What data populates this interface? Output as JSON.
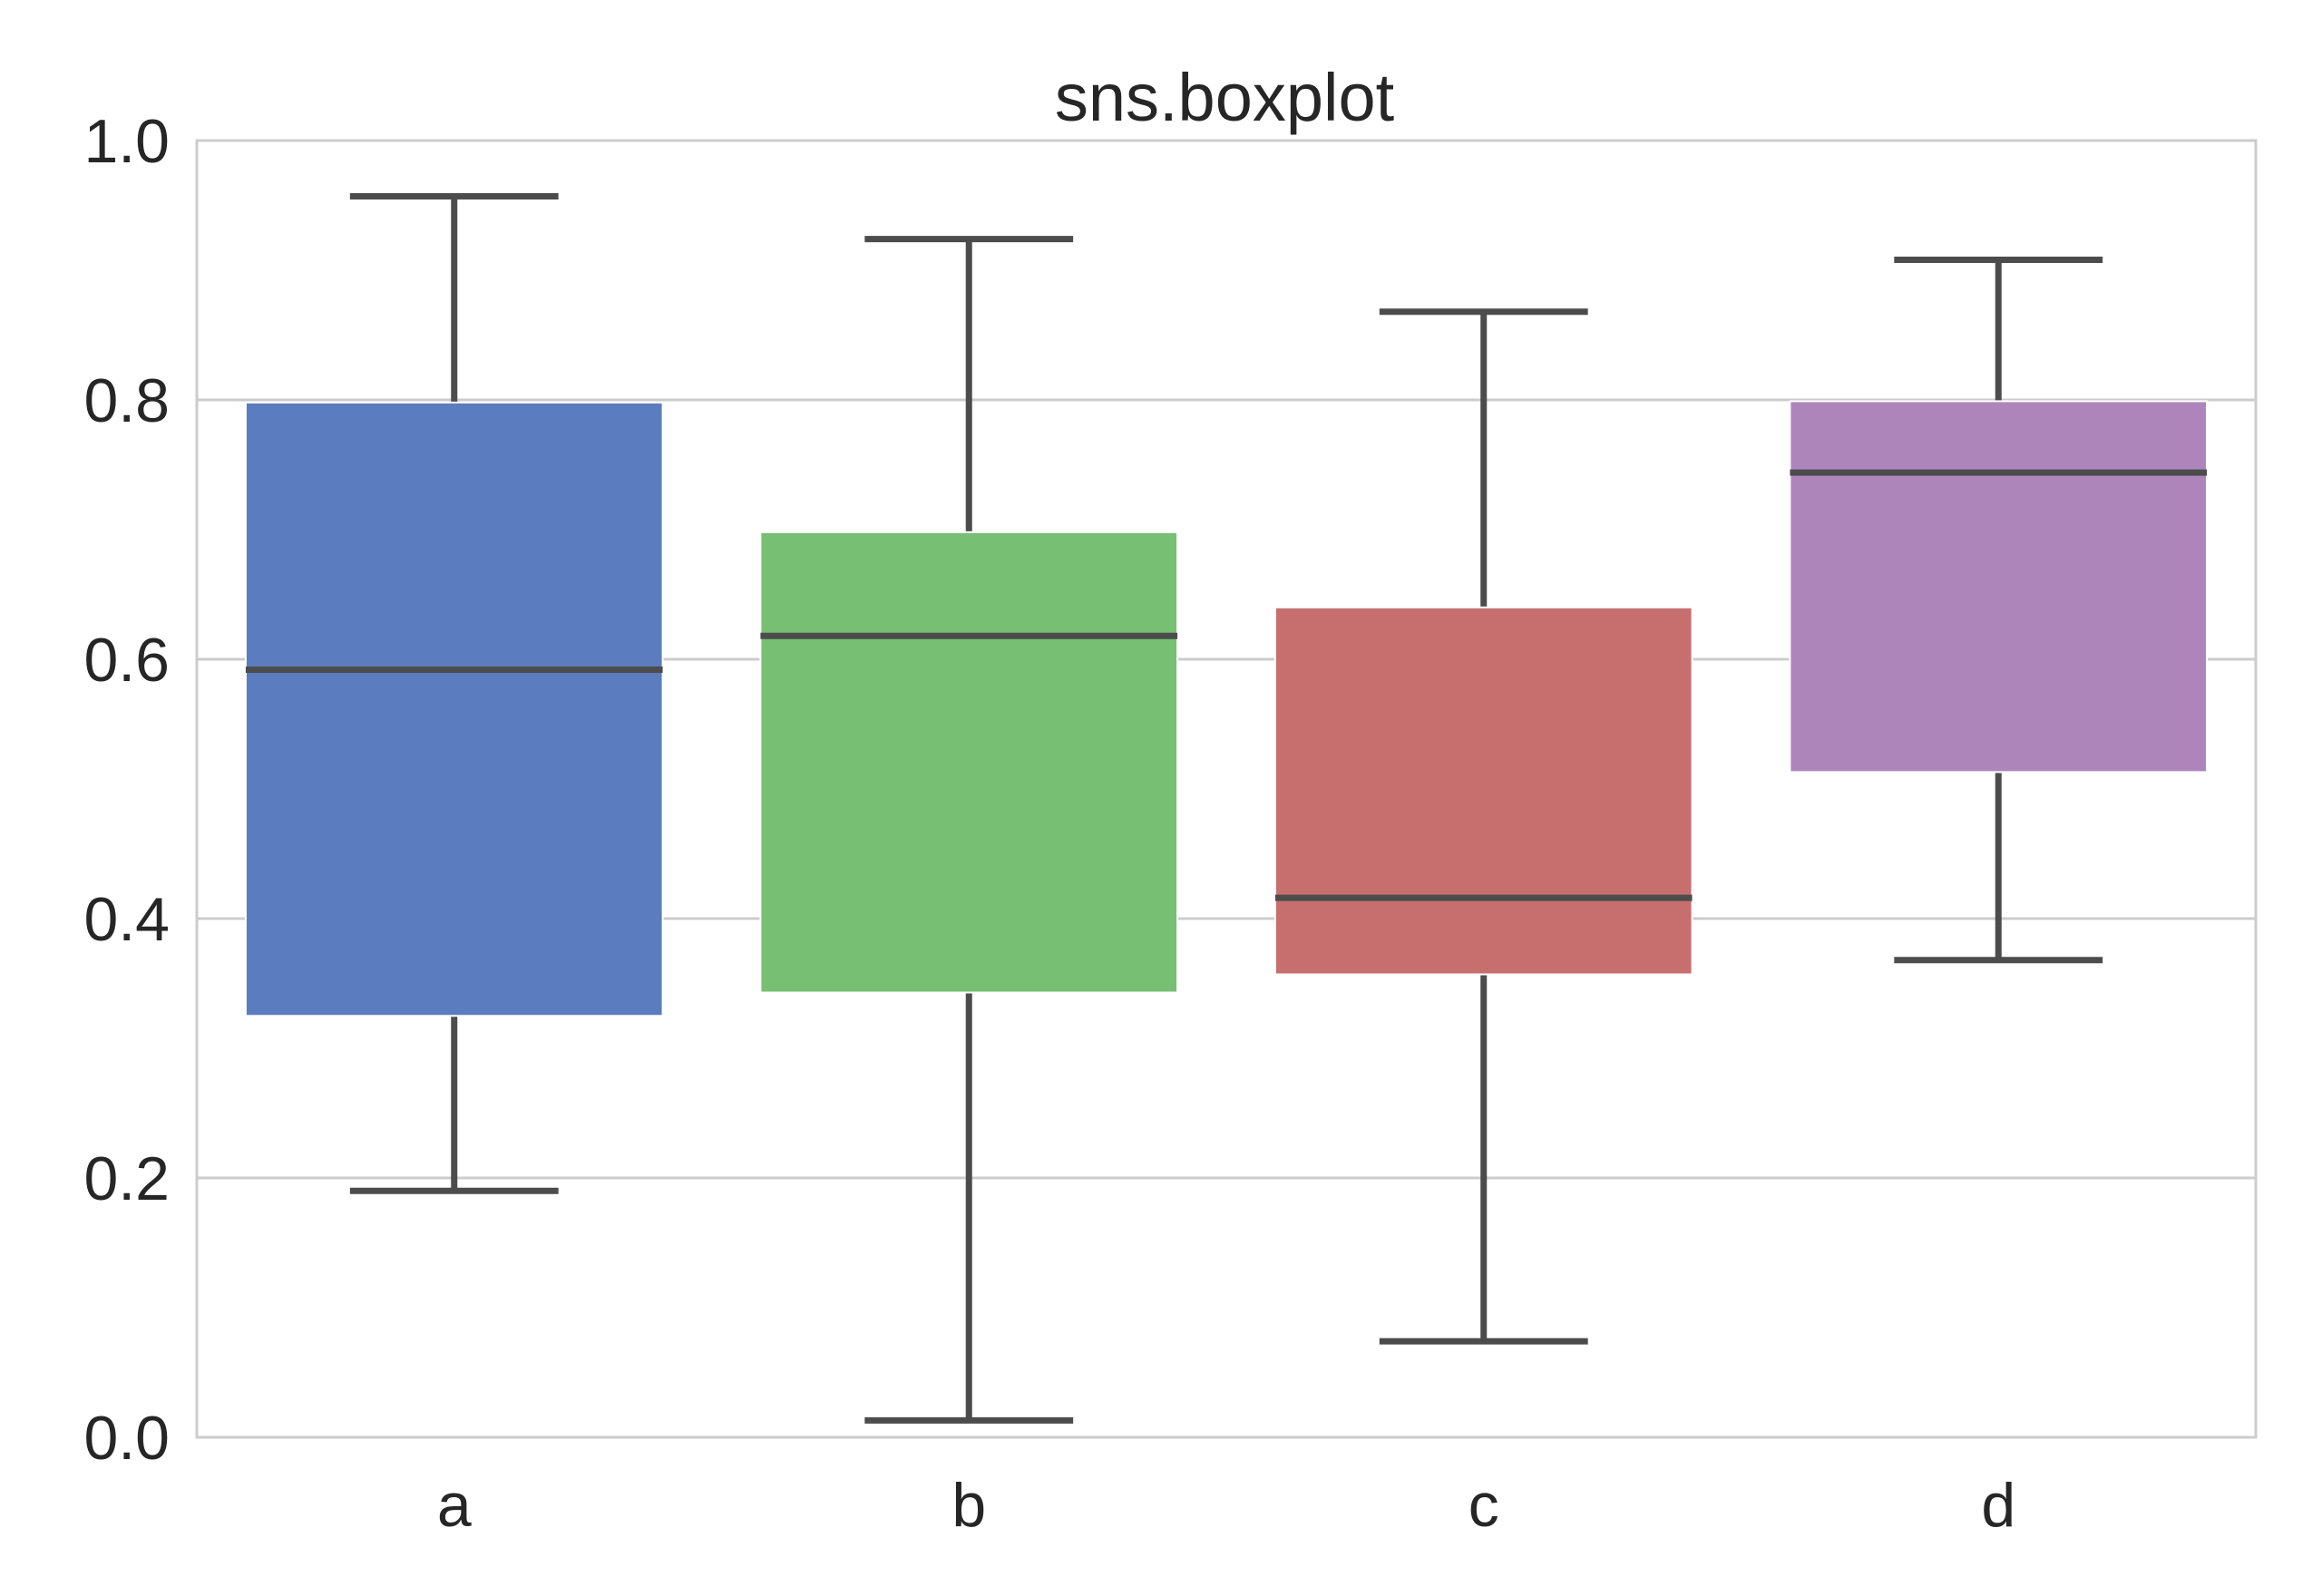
{
  "chart_data": {
    "type": "box",
    "title": "sns.boxplot",
    "xlabel": "",
    "ylabel": "",
    "ylim": [
      0.0,
      1.0
    ],
    "yticks": [
      "0.0",
      "0.2",
      "0.4",
      "0.6",
      "0.8",
      "1.0"
    ],
    "ytick_values": [
      0.0,
      0.2,
      0.4,
      0.6,
      0.8,
      1.0
    ],
    "categories": [
      "a",
      "b",
      "c",
      "d"
    ],
    "grid": "horizontal",
    "reference_line": 0.0,
    "boxes": [
      {
        "category": "a",
        "whislo": 0.19,
        "q1": 0.325,
        "median": 0.592,
        "q3": 0.798,
        "whishi": 0.957,
        "color": "#5b7dbf"
      },
      {
        "category": "b",
        "whislo": 0.013,
        "q1": 0.343,
        "median": 0.618,
        "q3": 0.698,
        "whishi": 0.924,
        "color": "#77bf73"
      },
      {
        "category": "c",
        "whislo": 0.074,
        "q1": 0.357,
        "median": 0.416,
        "q3": 0.64,
        "whishi": 0.868,
        "color": "#c66f6e"
      },
      {
        "category": "d",
        "whislo": 0.368,
        "q1": 0.513,
        "median": 0.744,
        "q3": 0.799,
        "whishi": 0.908,
        "color": "#ad85bb"
      }
    ],
    "colors": {
      "grid": "#cccccc",
      "lines": "#4c4c4c",
      "text": "#262626",
      "background": "#ffffff"
    }
  }
}
